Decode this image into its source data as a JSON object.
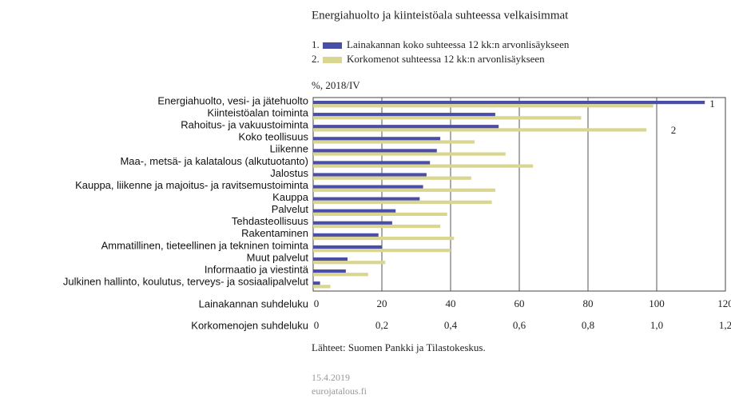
{
  "chart_data": {
    "type": "bar",
    "orientation": "horizontal",
    "title": "Energiahuolto ja kiinteistöala suhteessa velkaisimmat",
    "unit_label": "%, 2018/IV",
    "categories": [
      "Energiahuolto, vesi- ja jätehuolto",
      "Kiinteistöalan toiminta",
      "Rahoitus- ja vakuustoiminta",
      "Koko teollisuus",
      "Liikenne",
      "Maa-, metsä- ja kalatalous (alkutuotanto)",
      "Jalostus",
      "Kauppa, liikenne ja majoitus- ja ravitsemustoiminta",
      "Kauppa",
      "Palvelut",
      "Tehdasteollisuus",
      "Rakentaminen",
      "Ammatillinen, tieteellinen ja tekninen toiminta",
      "Muut palvelut",
      "Informaatio ja viestintä",
      "Julkinen hallinto, koulutus, terveys- ja sosiaalipalvelut"
    ],
    "series": [
      {
        "name": "Lainakannan koko suhteessa 12 kk:n arvonlisäykseen",
        "legend_number": "1.",
        "annotation": "1",
        "color": "#4b4ea6",
        "axis": "x",
        "values": [
          114,
          53,
          54,
          37,
          36,
          34,
          33,
          32,
          31,
          24,
          23,
          19,
          20,
          10,
          9.5,
          2
        ]
      },
      {
        "name": "Korkomenot suhteessa 12 kk:n arvonlisäykseen",
        "legend_number": "2.",
        "annotation": "2",
        "color": "#d8d690",
        "axis": "x2",
        "values": [
          0.99,
          0.78,
          0.97,
          0.47,
          0.56,
          0.64,
          0.46,
          0.53,
          0.52,
          0.39,
          0.37,
          0.41,
          0.4,
          0.21,
          0.16,
          0.05
        ]
      }
    ],
    "xlabel": "Lainakannan suhdeluku",
    "xlim": [
      0,
      120
    ],
    "xticks": [
      0,
      20,
      40,
      60,
      80,
      100,
      120
    ],
    "x2label": "Korkomenojen suhdeluku",
    "x2lim": [
      0,
      1.2
    ],
    "x2ticks": [
      0,
      {
        "value": 0.2,
        "label": "0,2"
      },
      {
        "value": 0.4,
        "label": "0,4"
      },
      {
        "value": 0.6,
        "label": "0,6"
      },
      {
        "value": 0.8,
        "label": "0,8"
      },
      {
        "value": 1,
        "label": "1,0"
      },
      {
        "value": 1.2,
        "label": "1,2"
      }
    ],
    "grid": true,
    "source": "Lähteet: Suomen Pankki ja Tilastokeskus.",
    "date": "15.4.2019",
    "site": "eurojatalous.fi"
  }
}
